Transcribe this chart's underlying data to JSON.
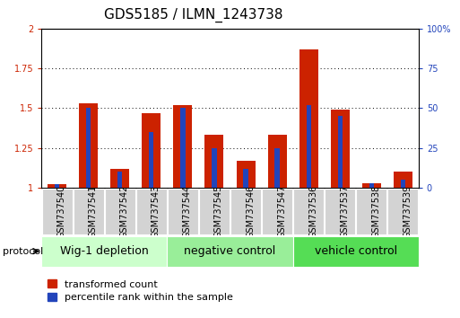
{
  "title": "GDS5185 / ILMN_1243738",
  "samples": [
    "GSM737540",
    "GSM737541",
    "GSM737542",
    "GSM737543",
    "GSM737544",
    "GSM737545",
    "GSM737546",
    "GSM737547",
    "GSM737536",
    "GSM737537",
    "GSM737538",
    "GSM737539"
  ],
  "red_values": [
    1.02,
    1.53,
    1.12,
    1.47,
    1.52,
    1.33,
    1.17,
    1.33,
    1.87,
    1.49,
    1.03,
    1.1
  ],
  "blue_pct": [
    2,
    50,
    10,
    35,
    50,
    25,
    12,
    25,
    52,
    45,
    3,
    5
  ],
  "groups": [
    {
      "label": "Wig-1 depletion",
      "start": 0,
      "end": 4,
      "color": "#ccffcc"
    },
    {
      "label": "negative control",
      "start": 4,
      "end": 8,
      "color": "#99ee99"
    },
    {
      "label": "vehicle control",
      "start": 8,
      "end": 12,
      "color": "#55dd55"
    }
  ],
  "ylim_left": [
    1.0,
    2.0
  ],
  "ylim_right": [
    0,
    100
  ],
  "yticks_left": [
    1.0,
    1.25,
    1.5,
    1.75,
    2.0
  ],
  "yticks_right": [
    0,
    25,
    50,
    75,
    100
  ],
  "red_color": "#cc2200",
  "blue_color": "#2244bb",
  "grid_color": "#000000",
  "bg_color": "#ffffff",
  "tick_color_left": "#cc2200",
  "tick_color_right": "#2244bb",
  "title_fontsize": 11,
  "axis_fontsize": 7,
  "legend_fontsize": 8,
  "group_label_fontsize": 9
}
